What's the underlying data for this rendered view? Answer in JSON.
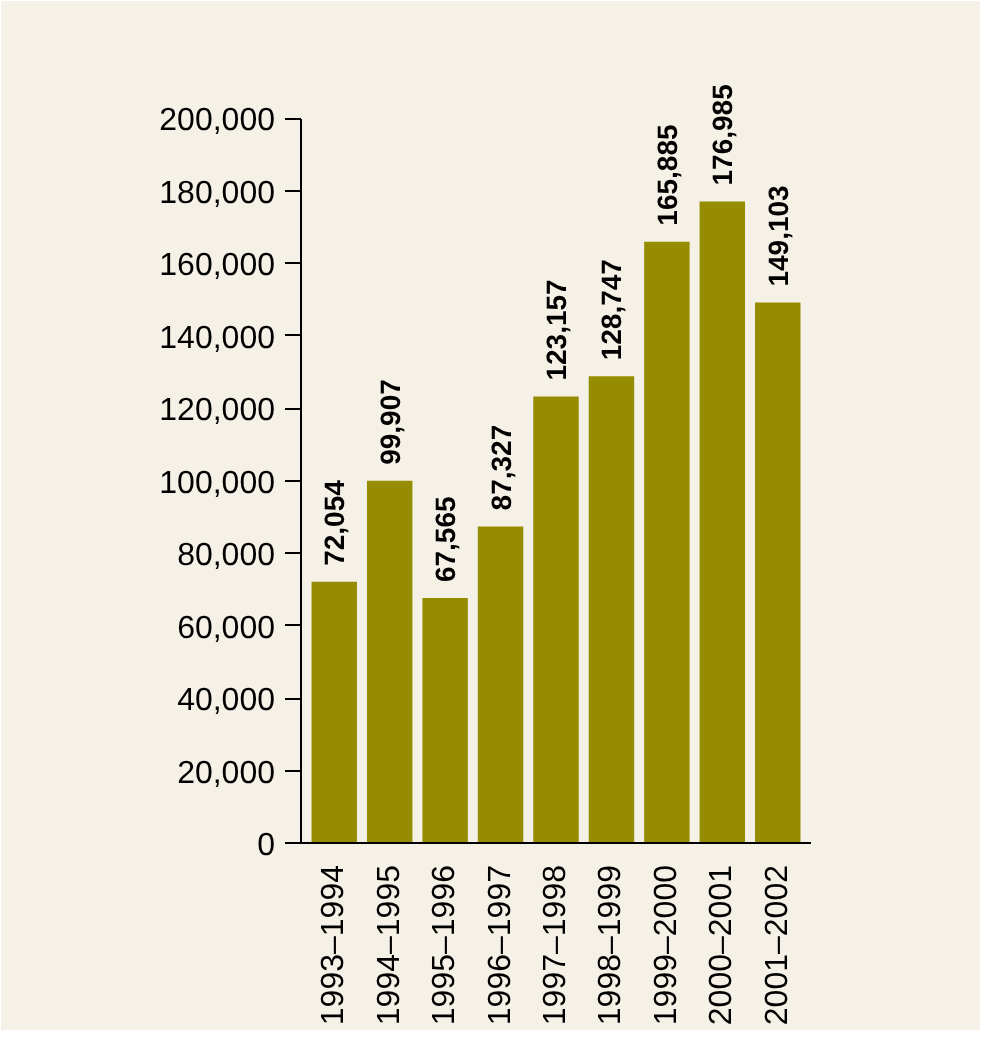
{
  "chart_data": {
    "type": "bar",
    "categories": [
      "1993–1994",
      "1994–1995",
      "1995–1996",
      "1996–1997",
      "1997–1998",
      "1998–1999",
      "1999–2000",
      "2000–2001",
      "2001–2002"
    ],
    "values": [
      72054,
      99907,
      67565,
      87327,
      123157,
      128747,
      165885,
      176985,
      149103
    ],
    "color": "#968c00",
    "ylim": [
      0,
      200000
    ],
    "yticks": [
      {
        "value": 0,
        "label": "0"
      },
      {
        "value": 20000,
        "label": "20,000"
      },
      {
        "value": 40000,
        "label": "40,000"
      },
      {
        "value": 60000,
        "label": "60,000"
      },
      {
        "value": 80000,
        "label": "80,000"
      },
      {
        "value": 100000,
        "label": "100,000"
      },
      {
        "value": 120000,
        "label": "120,000"
      },
      {
        "value": 140000,
        "label": "140,000"
      },
      {
        "value": 160000,
        "label": "160,000"
      },
      {
        "value": 180000,
        "label": "180,000"
      },
      {
        "value": 200000,
        "label": "200,000"
      }
    ],
    "value_labels": [
      "72,054",
      "99,907",
      "67,565",
      "87,327",
      "123,157",
      "128,747",
      "165,885",
      "176,985",
      "149,103"
    ],
    "grid": false
  }
}
